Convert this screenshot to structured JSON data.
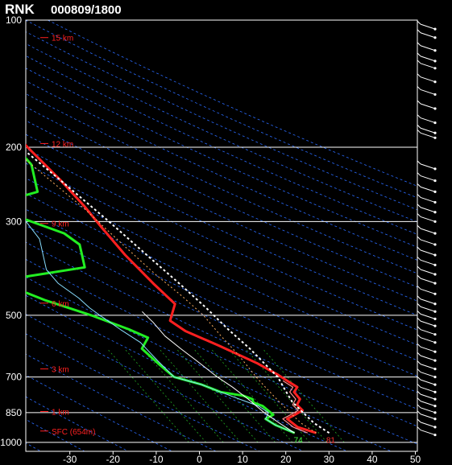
{
  "header": {
    "station": "RNK",
    "datetime": "000809/1800"
  },
  "chart_data": {
    "type": "line",
    "title": "RNK  000809/1800",
    "xlabel": "",
    "ylabel": "",
    "x_ticks": [
      -30,
      -20,
      -10,
      0,
      10,
      20,
      30,
      40,
      50
    ],
    "p_ticks": [
      100,
      200,
      300,
      500,
      700,
      850,
      1000
    ],
    "xlim": [
      -40,
      50
    ],
    "plim": [
      100,
      1050
    ],
    "height_labels": [
      {
        "p": 110,
        "text": "15 km"
      },
      {
        "p": 196,
        "text": "12 km"
      },
      {
        "p": 303,
        "text": "9 km"
      },
      {
        "p": 468,
        "text": "6 km"
      },
      {
        "p": 670,
        "text": "3 km"
      },
      {
        "p": 845,
        "text": "1 km"
      },
      {
        "p": 940,
        "text": "SFC (654m)"
      }
    ],
    "surface_labels": [
      {
        "text": "74",
        "t": 23.5,
        "p": 985,
        "color": "#44ff44"
      },
      {
        "text": "81",
        "t": 31,
        "p": 985,
        "color": "#ff3030"
      }
    ],
    "series": [
      {
        "color": "#ff2020",
        "points": [
          [
            28,
            950
          ],
          [
            24,
            920
          ],
          [
            22,
            880
          ],
          [
            24,
            860
          ],
          [
            26,
            840
          ],
          [
            25,
            815
          ],
          [
            26,
            790
          ],
          [
            25,
            760
          ],
          [
            26,
            740
          ],
          [
            24,
            715
          ],
          [
            22,
            690
          ],
          [
            18,
            650
          ],
          [
            10,
            590
          ],
          [
            3,
            545
          ],
          [
            0,
            515
          ],
          [
            2,
            470
          ],
          [
            -2,
            420
          ],
          [
            -7,
            360
          ],
          [
            -11,
            310
          ],
          [
            -14,
            275
          ],
          [
            -18,
            240
          ],
          [
            -24,
            200
          ],
          [
            -29,
            170
          ],
          [
            -32,
            150
          ],
          [
            -34,
            130
          ],
          [
            -35,
            113
          ],
          [
            -30,
            108
          ],
          [
            -18,
            100
          ]
        ]
      },
      {
        "color": "#ff9090",
        "points": [
          [
            26,
            950
          ],
          [
            23,
            920
          ],
          [
            21,
            880
          ],
          [
            23,
            860
          ],
          [
            25,
            840
          ],
          [
            24,
            815
          ],
          [
            25,
            790
          ],
          [
            24,
            760
          ],
          [
            25,
            740
          ],
          [
            23,
            715
          ]
        ]
      },
      {
        "color": "#22ee22",
        "points": [
          [
            23,
            950
          ],
          [
            19,
            910
          ],
          [
            17,
            880
          ],
          [
            19,
            860
          ],
          [
            18,
            840
          ],
          [
            17,
            820
          ],
          [
            15,
            805
          ],
          [
            15,
            790
          ],
          [
            13,
            775
          ],
          [
            8,
            760
          ],
          [
            4,
            730
          ],
          [
            -2,
            700
          ],
          [
            -5,
            650
          ],
          [
            -8,
            600
          ],
          [
            -6,
            565
          ],
          [
            -10,
            540
          ],
          [
            -18,
            500
          ],
          [
            -28,
            460
          ],
          [
            -38,
            415
          ],
          [
            -17,
            385
          ],
          [
            -17,
            360
          ],
          [
            -17,
            340
          ],
          [
            -20,
            320
          ],
          [
            -27,
            300
          ],
          [
            -36,
            275
          ],
          [
            -24,
            255
          ],
          [
            -24,
            240
          ],
          [
            -24,
            220
          ],
          [
            -26,
            205
          ],
          [
            -28,
            185
          ],
          [
            -34,
            160
          ],
          [
            -40,
            135
          ],
          [
            -45,
            112
          ],
          [
            -43,
            108
          ],
          [
            -36,
            100
          ]
        ]
      },
      {
        "color": "#88ddff",
        "points": [
          [
            23,
            950
          ],
          [
            19,
            910
          ],
          [
            17,
            880
          ],
          [
            18,
            850
          ],
          [
            16,
            820
          ],
          [
            12,
            790
          ],
          [
            8,
            760
          ],
          [
            4,
            730
          ],
          [
            -2,
            700
          ],
          [
            -5,
            640
          ],
          [
            -8,
            580
          ],
          [
            -12,
            540
          ],
          [
            -16,
            500
          ],
          [
            -18,
            480
          ],
          [
            -20,
            455
          ],
          [
            -24,
            420
          ],
          [
            -26,
            390
          ],
          [
            -26,
            360
          ],
          [
            -26,
            330
          ],
          [
            -29,
            290
          ],
          [
            -33,
            255
          ],
          [
            -36,
            225
          ]
        ]
      },
      {
        "color": "#ffffff",
        "dash": "3,3",
        "width": 2,
        "points": [
          [
            31,
            950
          ],
          [
            28,
            900
          ],
          [
            26,
            850
          ],
          [
            24,
            800
          ],
          [
            23,
            750
          ],
          [
            22,
            700
          ],
          [
            17,
            600
          ],
          [
            13,
            540
          ],
          [
            9,
            480
          ],
          [
            4,
            420
          ],
          [
            -2,
            360
          ],
          [
            -9,
            300
          ],
          [
            -18,
            240
          ],
          [
            -30,
            180
          ],
          [
            -42,
            130
          ],
          [
            -49,
            100
          ]
        ]
      },
      {
        "color": "#ffb060",
        "dash": "2,3",
        "width": 1,
        "points": [
          [
            28,
            950
          ],
          [
            25,
            900
          ],
          [
            23,
            850
          ],
          [
            21,
            800
          ],
          [
            19,
            750
          ],
          [
            17,
            700
          ],
          [
            14,
            620
          ],
          [
            11,
            560
          ],
          [
            8,
            500
          ],
          [
            4,
            450
          ],
          [
            -1,
            400
          ],
          [
            -7,
            340
          ],
          [
            -14,
            280
          ],
          [
            -24,
            220
          ],
          [
            -36,
            160
          ],
          [
            -47,
            110
          ]
        ]
      },
      {
        "color": "#ffffff",
        "dash": "",
        "width": 1,
        "points": [
          [
            23,
            950
          ],
          [
            20,
            900
          ],
          [
            17,
            850
          ],
          [
            14,
            790
          ],
          [
            11,
            740
          ],
          [
            8,
            700
          ],
          [
            4,
            640
          ],
          [
            1,
            600
          ],
          [
            -2,
            560
          ],
          [
            -4,
            520
          ],
          [
            -6,
            490
          ]
        ]
      }
    ],
    "wind_barbs_p": [
      105,
      110,
      118,
      125,
      130,
      140,
      150,
      162,
      175,
      185,
      190,
      225,
      240,
      255,
      270,
      285,
      300,
      320,
      340,
      360,
      380,
      400,
      420,
      445,
      470,
      490,
      510,
      530,
      555,
      580,
      610,
      640,
      670,
      700,
      730,
      760,
      790,
      820,
      850,
      880,
      920,
      960
    ]
  }
}
